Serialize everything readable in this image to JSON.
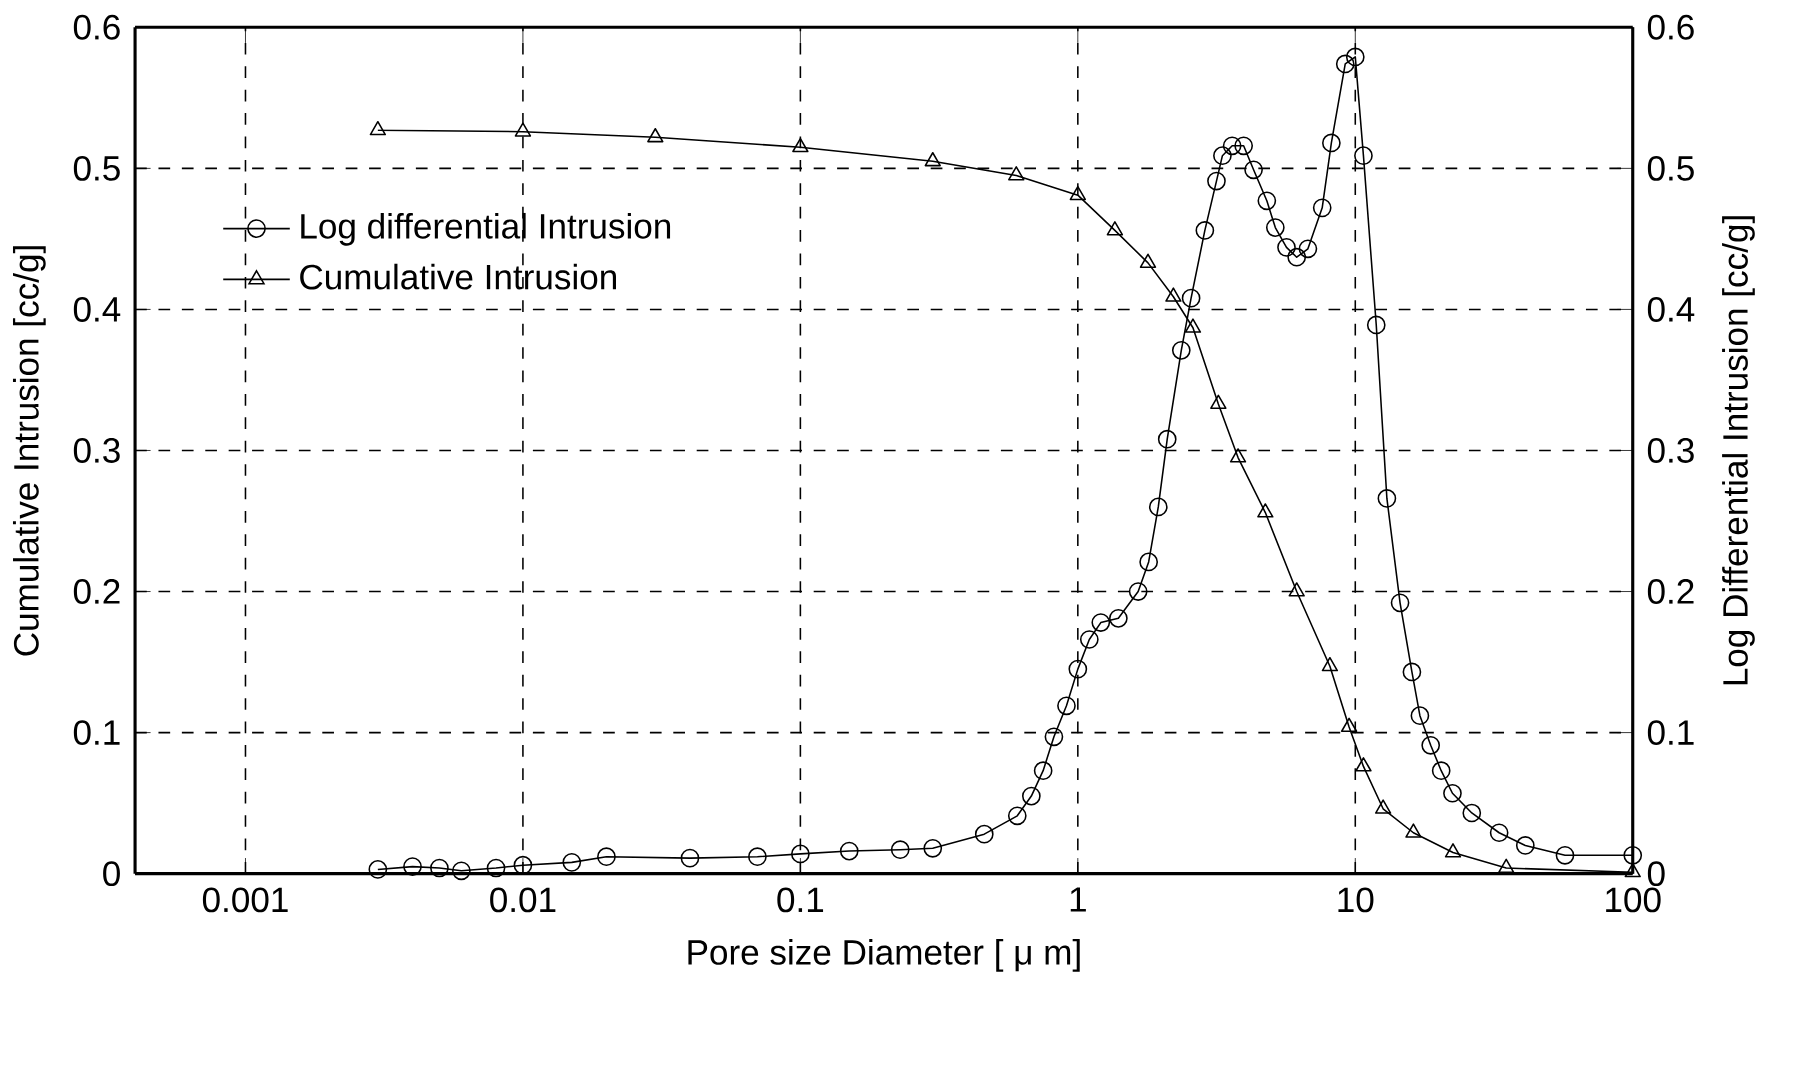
{
  "chart_data": {
    "type": "line",
    "xlabel": "Pore size Diameter [ μ m]",
    "ylabel": "Cumulative Intrusion [cc/g]",
    "y2label": "Log Differential Intrusion [cc/g]",
    "log": "x",
    "grid": true,
    "legend": "top left",
    "line_style": "solid",
    "xlim": [
      0.0004,
      100
    ],
    "xticks": [
      0.001,
      0.01,
      0.1,
      1,
      10,
      100
    ],
    "ylim": [
      0,
      0.6
    ],
    "yticks": [
      0,
      0.1,
      0.2,
      0.3,
      0.4,
      0.5,
      0.6
    ],
    "y2lim": [
      0,
      0.6
    ],
    "y2ticks": [
      0,
      0.1,
      0.2,
      0.3,
      0.4,
      0.5,
      0.6
    ],
    "series": [
      {
        "name": "Log differential Intrusion",
        "color": "#000000",
        "marker": "circle",
        "axis": "y2",
        "x": [
          0.003,
          0.004,
          0.005,
          0.006,
          0.008,
          0.01,
          0.015,
          0.02,
          0.04,
          0.07,
          0.1,
          0.15,
          0.229,
          0.3,
          0.46,
          0.605,
          0.68,
          0.75,
          0.82,
          0.91,
          1.0,
          1.1,
          1.21,
          1.4,
          1.65,
          1.8,
          1.95,
          2.1,
          2.36,
          2.56,
          2.87,
          3.16,
          3.32,
          3.6,
          3.96,
          4.3,
          4.8,
          5.15,
          5.65,
          6.15,
          6.75,
          7.6,
          8.2,
          9.2,
          10,
          10.7,
          11.9,
          13,
          14.5,
          16,
          17.1,
          18.7,
          20.4,
          22.4,
          26.3,
          33,
          41,
          57,
          100
        ],
        "values": [
          0.003,
          0.005,
          0.004,
          0.002,
          0.004,
          0.006,
          0.008,
          0.012,
          0.011,
          0.012,
          0.014,
          0.016,
          0.017,
          0.018,
          0.028,
          0.041,
          0.055,
          0.073,
          0.097,
          0.119,
          0.145,
          0.166,
          0.178,
          0.181,
          0.2,
          0.221,
          0.26,
          0.308,
          0.371,
          0.408,
          0.456,
          0.491,
          0.509,
          0.516,
          0.516,
          0.499,
          0.477,
          0.458,
          0.444,
          0.437,
          0.443,
          0.472,
          0.518,
          0.574,
          0.579,
          0.509,
          0.389,
          0.266,
          0.192,
          0.143,
          0.112,
          0.091,
          0.073,
          0.057,
          0.043,
          0.029,
          0.02,
          0.013,
          0.013
        ]
      },
      {
        "name": "Cumulative Intrusion",
        "color": "#000000",
        "marker": "triangle",
        "axis": "y",
        "x": [
          0.003,
          0.01,
          0.03,
          0.1,
          0.3,
          0.6,
          1.0,
          1.36,
          1.79,
          2.21,
          2.6,
          3.21,
          3.78,
          4.74,
          6.15,
          8.1,
          9.5,
          10.7,
          12.6,
          16.2,
          22.5,
          35,
          100
        ],
        "values": [
          0.527,
          0.526,
          0.522,
          0.515,
          0.505,
          0.495,
          0.481,
          0.456,
          0.433,
          0.409,
          0.387,
          0.333,
          0.295,
          0.256,
          0.2,
          0.147,
          0.104,
          0.076,
          0.046,
          0.029,
          0.015,
          0.004,
          0.001
        ]
      }
    ]
  }
}
